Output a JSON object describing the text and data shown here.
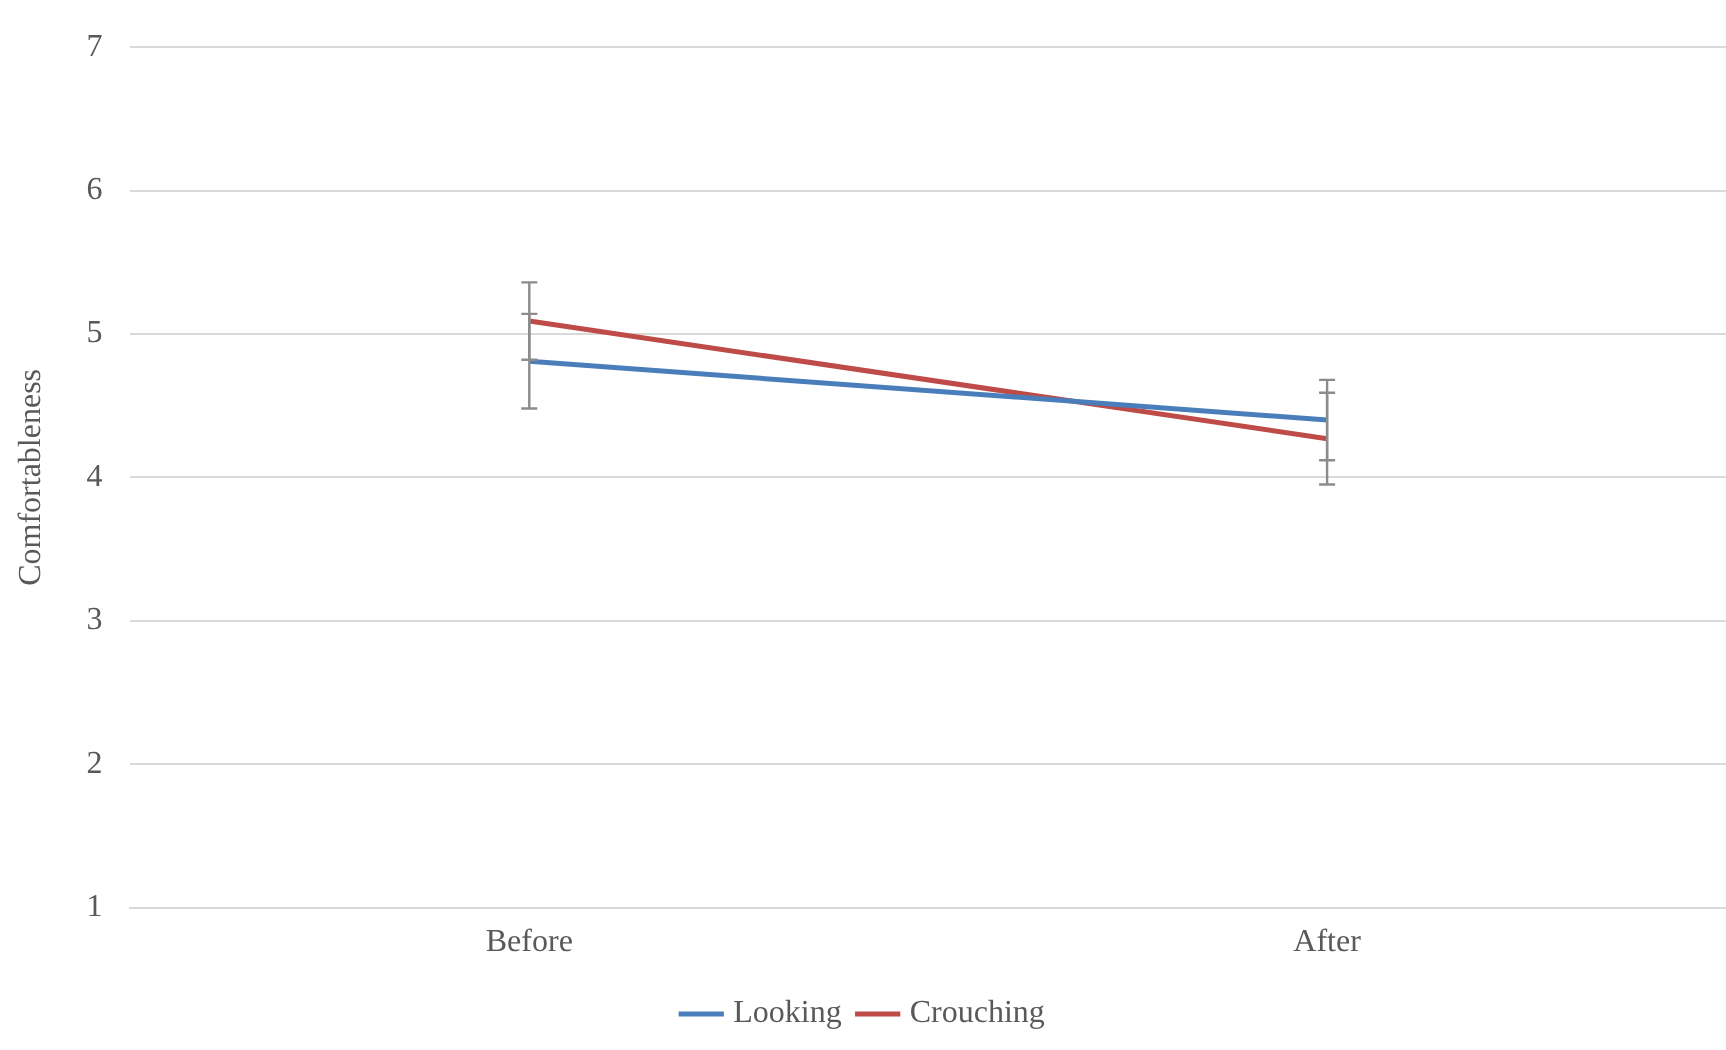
{
  "chart_data": {
    "type": "line",
    "ylabel": "Comfortableness",
    "categories": [
      "Before",
      "After"
    ],
    "series": [
      {
        "name": "Looking",
        "color": "#4a7ebb",
        "values": [
          4.81,
          4.4
        ],
        "errors": [
          0.33,
          0.28
        ]
      },
      {
        "name": "Crouching",
        "color": "#be4b48",
        "values": [
          5.09,
          4.27
        ],
        "errors": [
          0.27,
          0.32
        ]
      }
    ],
    "ylim": [
      1,
      7
    ],
    "yticks": [
      1,
      2,
      3,
      4,
      5,
      6,
      7
    ],
    "grid": "y",
    "legend": "bottom",
    "marker": "none",
    "line_style": "solid"
  }
}
